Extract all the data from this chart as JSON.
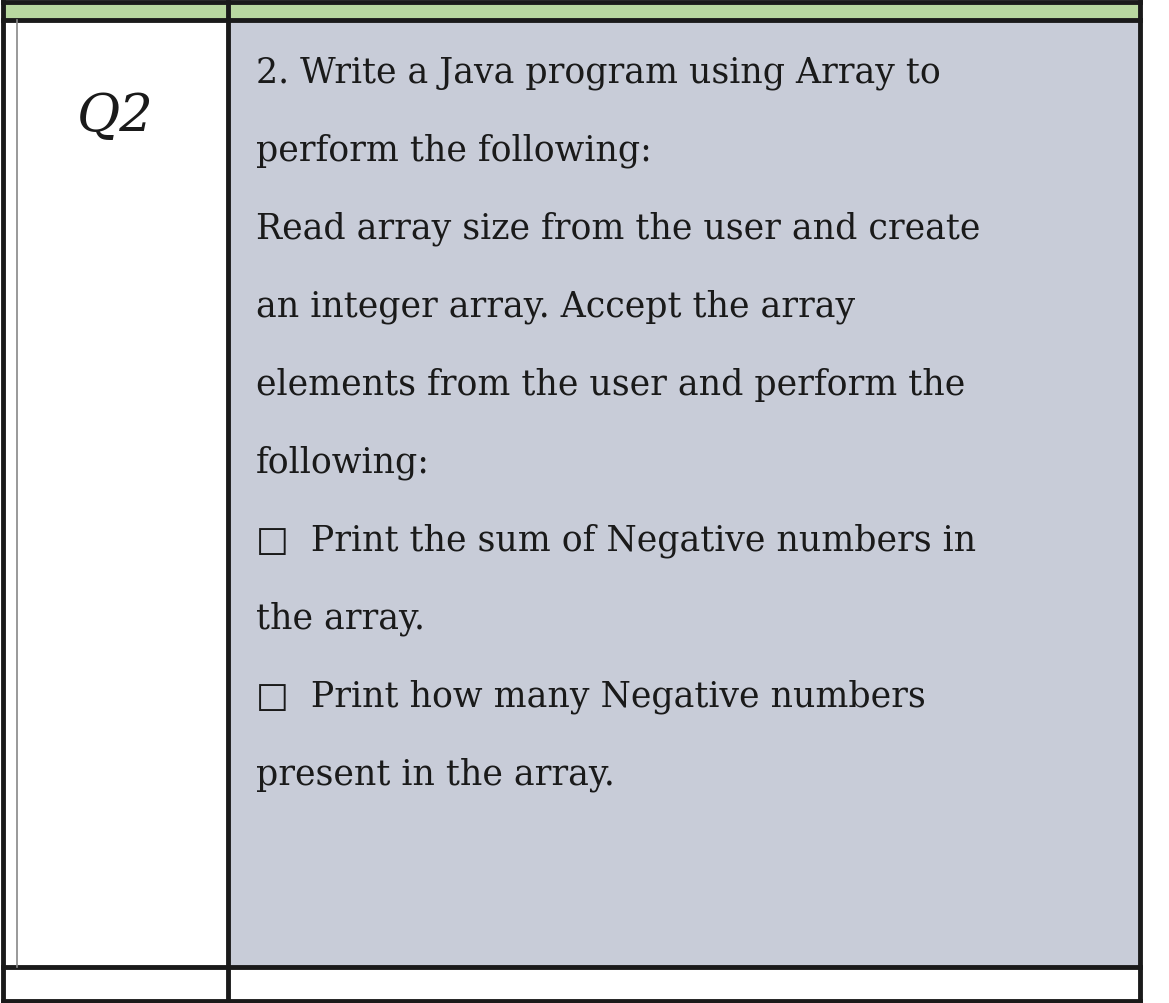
{
  "bg_color": "#ffffff",
  "cell_right_bg": "#c8ccd8",
  "cell_left_bg": "#ffffff",
  "header_color": "#b8d8a0",
  "border_color": "#1a1a1a",
  "thin_border_color": "#888888",
  "q_label": "Q2",
  "q_label_fontsize": 38,
  "q_label_color": "#1a1a1a",
  "text_color": "#1a1a1a",
  "text_fontsize": 25,
  "lines": [
    "2. Write a Java program using Array to",
    "perform the following:",
    "Read array size from the user and create",
    "an integer array. Accept the array",
    "elements from the user and perform the",
    "following:",
    "□  Print the sum of Negative numbers in",
    "the array.",
    "□  Print how many Negative numbers",
    "present in the array."
  ],
  "fig_width": 11.69,
  "fig_height": 10.04,
  "dpi": 100
}
